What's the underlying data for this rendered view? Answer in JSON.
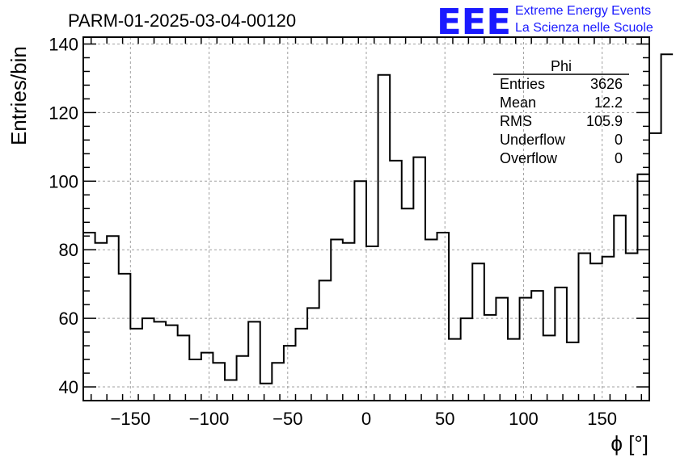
{
  "chart_data": {
    "type": "histogram",
    "title": "PARM-01-2025-03-04-00120",
    "xlabel": "ϕ [°]",
    "ylabel": "Entries/bin",
    "xlim": [
      -180,
      180
    ],
    "ylim": [
      36,
      142
    ],
    "x_ticks": [
      -150,
      -100,
      -50,
      0,
      50,
      100,
      150
    ],
    "x_tick_labels": [
      "−150",
      "−100",
      "−50",
      "0",
      "50",
      "100",
      "150"
    ],
    "y_ticks": [
      40,
      60,
      80,
      100,
      120,
      140
    ],
    "y_tick_labels": [
      "40",
      "60",
      "80",
      "100",
      "120",
      "140"
    ],
    "bin_edges_start": -180,
    "bin_width": 7.5,
    "values": [
      85,
      82,
      84,
      73,
      57,
      60,
      59,
      58,
      55,
      48,
      50,
      47,
      42,
      49,
      59,
      41,
      47,
      52,
      57,
      63,
      71,
      83,
      82,
      100,
      81,
      131,
      106,
      92,
      107,
      83,
      85,
      54,
      60,
      76,
      61,
      66,
      54,
      66,
      68,
      55,
      69,
      53,
      79,
      76,
      78,
      90,
      79,
      102,
      114,
      137
    ],
    "grid": true,
    "stats": {
      "name": "Phi",
      "rows": [
        {
          "label": "Entries",
          "value": "3626"
        },
        {
          "label": "Mean",
          "value": "12.2"
        },
        {
          "label": "RMS",
          "value": "105.9"
        },
        {
          "label": "Underflow",
          "value": "0"
        },
        {
          "label": "Overflow",
          "value": "0"
        }
      ]
    }
  },
  "logo": {
    "mark": "EEE",
    "line1": "Extreme Energy Events",
    "line2": "La Scienza nelle Scuole",
    "color": "#1a1aff"
  },
  "colors": {
    "line": "#000000",
    "grid": "#a0a0a0"
  }
}
